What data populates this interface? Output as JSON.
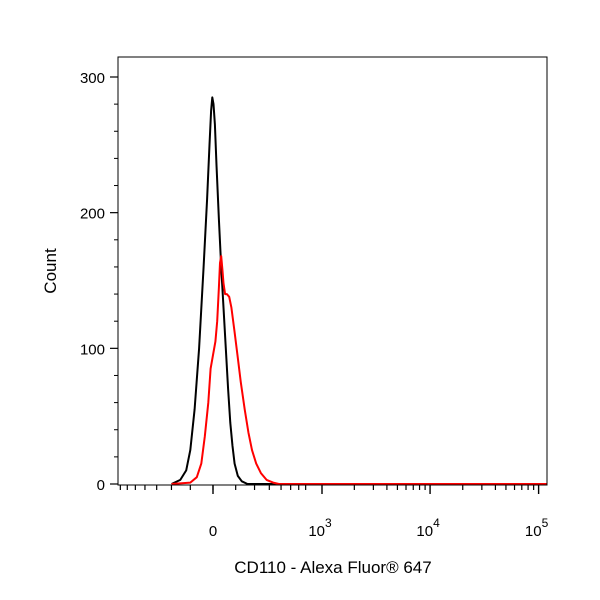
{
  "chart_data": {
    "type": "line",
    "title": "",
    "xlabel": "CD110 - Alexa Fluor® 647",
    "ylabel": "Count",
    "x_scale": "biexponential",
    "ylim": [
      0,
      300
    ],
    "grid": false,
    "legend": "none",
    "y_ticks": [
      0,
      100,
      200,
      300
    ],
    "x_ticks": [
      {
        "value": 0,
        "base": "0",
        "exp": ""
      },
      {
        "value": 1000,
        "base": "10",
        "exp": "3"
      },
      {
        "value": 10000,
        "base": "10",
        "exp": "4"
      },
      {
        "value": 100000,
        "base": "10",
        "exp": "5"
      }
    ],
    "series": [
      {
        "color": "#000000",
        "points": [
          [
            -200,
            0
          ],
          [
            -150,
            3
          ],
          [
            -120,
            10
          ],
          [
            -100,
            25
          ],
          [
            -80,
            55
          ],
          [
            -60,
            100
          ],
          [
            -40,
            160
          ],
          [
            -25,
            210
          ],
          [
            -15,
            250
          ],
          [
            -8,
            275
          ],
          [
            -3,
            285
          ],
          [
            2,
            280
          ],
          [
            8,
            265
          ],
          [
            15,
            235
          ],
          [
            25,
            195
          ],
          [
            35,
            160
          ],
          [
            45,
            130
          ],
          [
            55,
            100
          ],
          [
            65,
            70
          ],
          [
            75,
            45
          ],
          [
            85,
            28
          ],
          [
            95,
            15
          ],
          [
            110,
            6
          ],
          [
            130,
            2
          ],
          [
            160,
            0
          ],
          [
            300,
            0
          ],
          [
            300000,
            0
          ]
        ]
      },
      {
        "color": "#ff0000",
        "points": [
          [
            -200,
            0
          ],
          [
            -100,
            1
          ],
          [
            -70,
            5
          ],
          [
            -50,
            15
          ],
          [
            -35,
            35
          ],
          [
            -20,
            60
          ],
          [
            -10,
            85
          ],
          [
            0,
            95
          ],
          [
            10,
            105
          ],
          [
            18,
            120
          ],
          [
            25,
            145
          ],
          [
            30,
            163
          ],
          [
            35,
            168
          ],
          [
            40,
            158
          ],
          [
            45,
            148
          ],
          [
            52,
            140
          ],
          [
            60,
            140
          ],
          [
            70,
            138
          ],
          [
            80,
            130
          ],
          [
            95,
            112
          ],
          [
            110,
            93
          ],
          [
            125,
            75
          ],
          [
            145,
            55
          ],
          [
            165,
            38
          ],
          [
            185,
            25
          ],
          [
            210,
            15
          ],
          [
            240,
            8
          ],
          [
            280,
            3
          ],
          [
            330,
            1
          ],
          [
            380,
            0
          ],
          [
            300000,
            0
          ]
        ]
      }
    ]
  }
}
